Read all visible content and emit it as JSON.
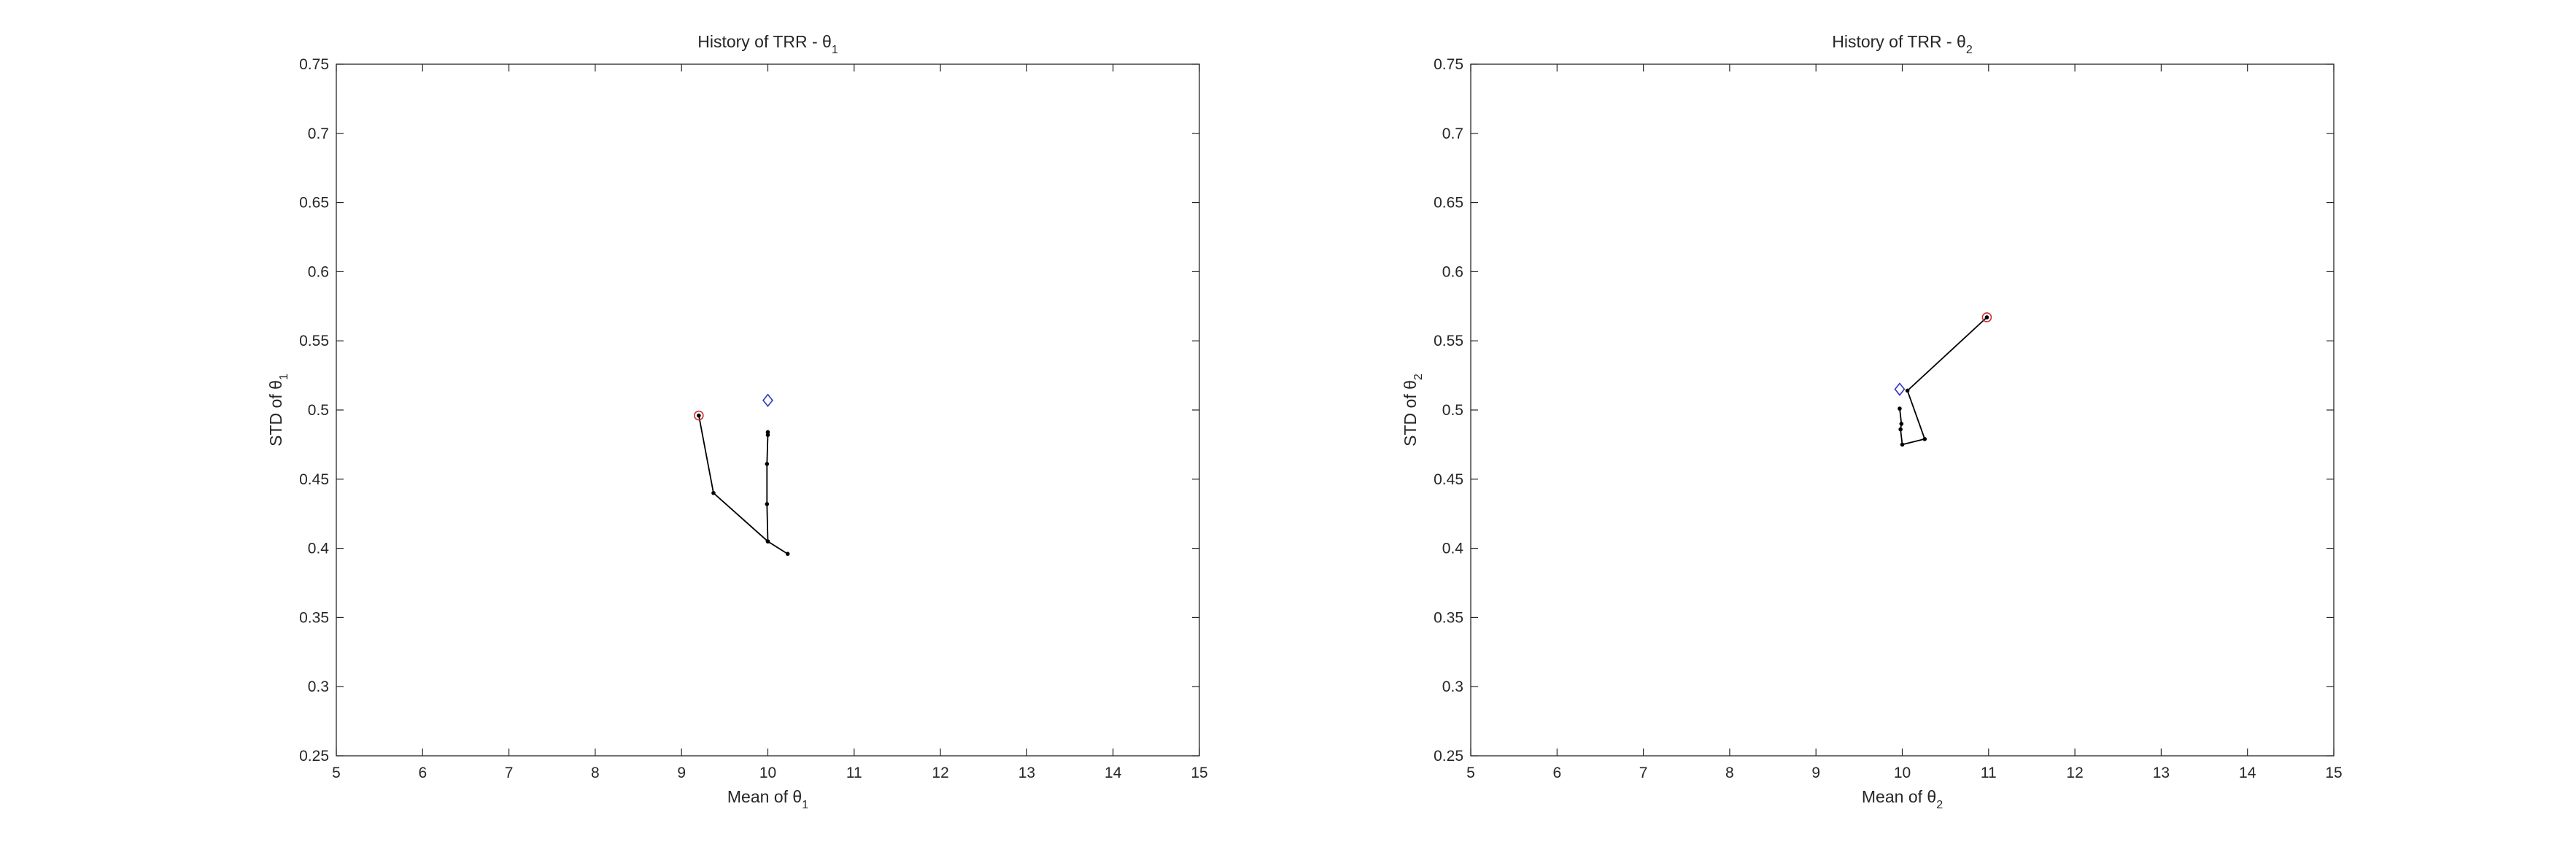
{
  "figure": {
    "colors": {
      "axis": "#262626",
      "path": "#000000",
      "start_marker": "#cc3333",
      "target_marker": "#3333cc"
    }
  },
  "chart_data": [
    {
      "type": "line",
      "title": "History of TRR - θ",
      "title_subscript": "1",
      "xlabel": "Mean of θ",
      "xlabel_subscript": "1",
      "ylabel": "STD of θ",
      "ylabel_subscript": "1",
      "xlim": [
        5,
        15
      ],
      "ylim": [
        0.25,
        0.75
      ],
      "xticks": [
        5,
        6,
        7,
        8,
        9,
        10,
        11,
        12,
        13,
        14,
        15
      ],
      "yticks": [
        0.25,
        0.3,
        0.35,
        0.4,
        0.45,
        0.5,
        0.55,
        0.6,
        0.65,
        0.7,
        0.75
      ],
      "grid": false,
      "series": [
        {
          "x": [
            9.2,
            9.37,
            10.0,
            10.23,
            10.0,
            9.99,
            9.99,
            10.0,
            10.0
          ],
          "y": [
            0.496,
            0.44,
            0.405,
            0.396,
            0.405,
            0.432,
            0.461,
            0.482,
            0.484
          ]
        }
      ],
      "start_point": {
        "x": 9.2,
        "y": 0.496
      },
      "target_point": {
        "x": 10.0,
        "y": 0.507
      }
    },
    {
      "type": "line",
      "title": "History of TRR - θ",
      "title_subscript": "2",
      "xlabel": "Mean of θ",
      "xlabel_subscript": "2",
      "ylabel": "STD of θ",
      "ylabel_subscript": "2",
      "xlim": [
        5,
        15
      ],
      "ylim": [
        0.25,
        0.75
      ],
      "xticks": [
        5,
        6,
        7,
        8,
        9,
        10,
        11,
        12,
        13,
        14,
        15
      ],
      "yticks": [
        0.25,
        0.3,
        0.35,
        0.4,
        0.45,
        0.5,
        0.55,
        0.6,
        0.65,
        0.7,
        0.75
      ],
      "grid": false,
      "series": [
        {
          "x": [
            10.98,
            10.06,
            10.26,
            10.0,
            9.98,
            9.99,
            9.97
          ],
          "y": [
            0.567,
            0.514,
            0.479,
            0.475,
            0.486,
            0.49,
            0.501
          ]
        }
      ],
      "start_point": {
        "x": 10.98,
        "y": 0.567
      },
      "target_point": {
        "x": 9.97,
        "y": 0.515
      }
    }
  ]
}
